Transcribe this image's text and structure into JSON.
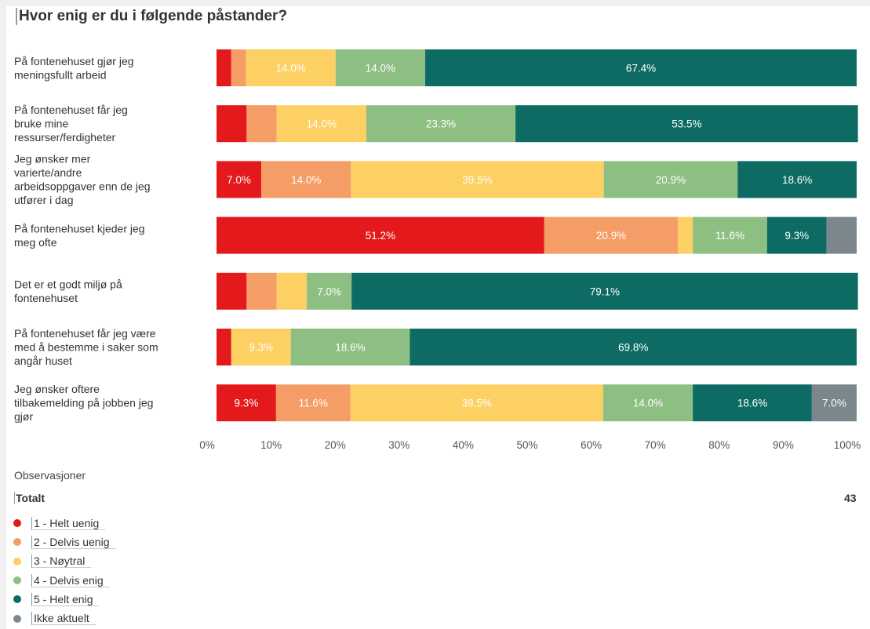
{
  "chart_data": {
    "type": "bar",
    "orientation": "horizontal",
    "stacked": true,
    "title": "Hvor enig er du i følgende påstander?",
    "categories": [
      "På fontenehuset gjør jeg meningsfullt arbeid",
      "På fontenehuset får jeg bruke mine ressurser/ferdigheter",
      "Jeg ønsker mer varierte/andre arbeidsoppgaver enn de jeg utfører i dag",
      "På fontenehuset kjeder jeg meg ofte",
      "Det er et godt miljø på fontenehuset",
      "På fontenehuset får jeg være med å bestemme i saker som angår huset",
      "Jeg ønsker oftere tilbakemelding på jobben jeg gjør"
    ],
    "series": [
      {
        "name": "1 - Helt uenig",
        "color": "#e3191b",
        "values": [
          2.3,
          4.7,
          7.0,
          51.2,
          4.7,
          2.3,
          9.3
        ]
      },
      {
        "name": "2 - Delvis uenig",
        "color": "#f59d66",
        "values": [
          2.3,
          4.7,
          14.0,
          20.9,
          4.7,
          0,
          11.6
        ]
      },
      {
        "name": "3 - Nøytral",
        "color": "#fcd063",
        "values": [
          14.0,
          14.0,
          39.5,
          2.3,
          4.7,
          9.3,
          39.5
        ]
      },
      {
        "name": "4 - Delvis enig",
        "color": "#8dbf82",
        "values": [
          14.0,
          23.3,
          20.9,
          11.6,
          7.0,
          18.6,
          14.0
        ]
      },
      {
        "name": "5 - Helt enig",
        "color": "#0d6b63",
        "values": [
          67.4,
          53.5,
          18.6,
          9.3,
          79.1,
          69.8,
          18.6
        ]
      },
      {
        "name": "Ikke aktuelt",
        "color": "#7b878d",
        "values": [
          0,
          0,
          0,
          4.7,
          0,
          0,
          7.0
        ]
      }
    ],
    "shown_labels": [
      [
        "",
        "",
        "14.0%",
        "14.0%",
        "67.4%",
        ""
      ],
      [
        "",
        "",
        "14.0%",
        "23.3%",
        "53.5%",
        ""
      ],
      [
        "7.0%",
        "14.0%",
        "39.5%",
        "20.9%",
        "18.6%",
        ""
      ],
      [
        "51.2%",
        "20.9%",
        "",
        "11.6%",
        "9.3%",
        ""
      ],
      [
        "",
        "",
        "",
        "7.0%",
        "79.1%",
        ""
      ],
      [
        "",
        "",
        "9.3%",
        "18.6%",
        "69.8%",
        ""
      ],
      [
        "9.3%",
        "11.6%",
        "39.5%",
        "14.0%",
        "18.6%",
        "7.0%"
      ]
    ],
    "x_ticks": [
      "0%",
      "10%",
      "20%",
      "30%",
      "40%",
      "50%",
      "60%",
      "70%",
      "80%",
      "90%",
      "100%"
    ],
    "xlim": [
      0,
      100
    ],
    "grid": false,
    "legend_position": "bottom-left"
  },
  "observations": {
    "heading": "Observasjoner",
    "totals_label": "Totalt",
    "totals_value": "43"
  }
}
